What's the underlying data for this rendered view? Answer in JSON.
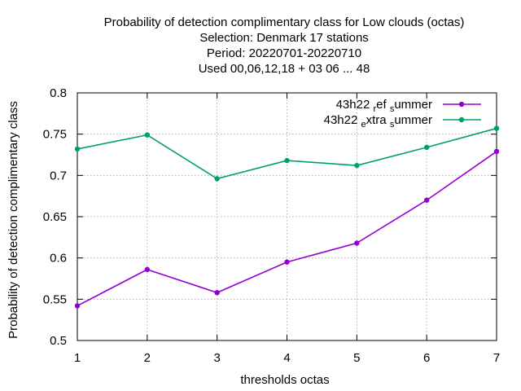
{
  "chart_data": {
    "type": "line",
    "title_lines": [
      "Probability of detection complimentary class  for Low clouds (octas)",
      "Selection: Denmark     17 stations",
      "Period: 20220701-20220710",
      "Used  00,06,12,18  + 03 06 ... 48"
    ],
    "xlabel": "thresholds octas",
    "ylabel": "Probability of detection complimentary class",
    "x": [
      1,
      2,
      3,
      4,
      5,
      6,
      7
    ],
    "x_tick_labels": [
      "1",
      "2",
      "3",
      "4",
      "5",
      "6",
      "7"
    ],
    "xlim": [
      1,
      7
    ],
    "ylim": [
      0.5,
      0.8
    ],
    "y_ticks": [
      0.5,
      0.55,
      0.6,
      0.65,
      0.7,
      0.75,
      0.8
    ],
    "y_tick_labels": [
      "0.5",
      "0.55",
      "0.6",
      "0.65",
      "0.7",
      "0.75",
      "0.8"
    ],
    "grid": true,
    "legend_position": "top-right",
    "series": [
      {
        "name": "43h22_ref_summer",
        "legend_parts": [
          "43h22 ",
          "r",
          "ef ",
          "s",
          "ummer"
        ],
        "color": "#9400d3",
        "values": [
          0.542,
          0.586,
          0.558,
          0.595,
          0.618,
          0.67,
          0.729
        ]
      },
      {
        "name": "43h22_extra_summer",
        "legend_parts": [
          "43h22 ",
          "e",
          "xtra ",
          "s",
          "ummer"
        ],
        "color": "#009e73",
        "values": [
          0.732,
          0.749,
          0.696,
          0.718,
          0.712,
          0.734,
          0.757
        ]
      }
    ]
  }
}
